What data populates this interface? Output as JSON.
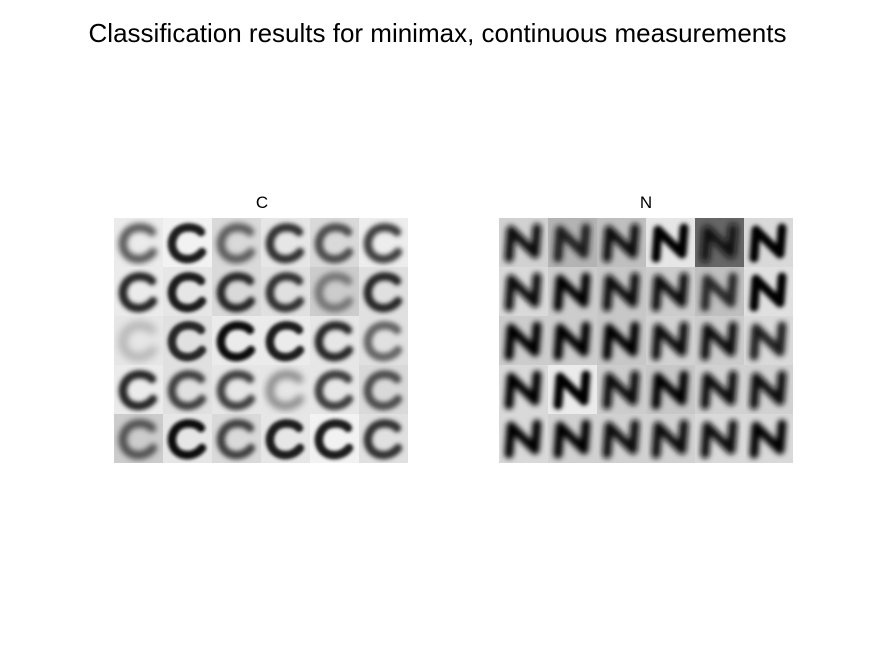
{
  "figure": {
    "title": "Classification results for minimax, continuous measurements"
  },
  "panels": [
    {
      "label": "C",
      "rows": 5,
      "cols": 6,
      "tile_glyph": "C",
      "tiles": [
        {
          "bg": 0.92,
          "ink": 0.35,
          "blur": 3.0
        },
        {
          "bg": 0.95,
          "ink": 0.1,
          "blur": 1.5
        },
        {
          "bg": 0.85,
          "ink": 0.35,
          "blur": 3.0
        },
        {
          "bg": 0.9,
          "ink": 0.2,
          "blur": 2.0
        },
        {
          "bg": 0.85,
          "ink": 0.3,
          "blur": 2.5
        },
        {
          "bg": 0.93,
          "ink": 0.25,
          "blur": 2.5
        },
        {
          "bg": 0.92,
          "ink": 0.15,
          "blur": 2.0
        },
        {
          "bg": 0.9,
          "ink": 0.1,
          "blur": 1.5
        },
        {
          "bg": 0.85,
          "ink": 0.15,
          "blur": 2.0
        },
        {
          "bg": 0.88,
          "ink": 0.2,
          "blur": 2.0
        },
        {
          "bg": 0.8,
          "ink": 0.45,
          "blur": 3.0
        },
        {
          "bg": 0.88,
          "ink": 0.15,
          "blur": 2.0
        },
        {
          "bg": 0.9,
          "ink": 0.7,
          "blur": 4.0
        },
        {
          "bg": 0.88,
          "ink": 0.15,
          "blur": 1.5
        },
        {
          "bg": 0.92,
          "ink": 0.05,
          "blur": 1.5
        },
        {
          "bg": 0.92,
          "ink": 0.1,
          "blur": 1.5
        },
        {
          "bg": 0.9,
          "ink": 0.15,
          "blur": 2.0
        },
        {
          "bg": 0.88,
          "ink": 0.4,
          "blur": 2.5
        },
        {
          "bg": 0.92,
          "ink": 0.15,
          "blur": 2.0
        },
        {
          "bg": 0.88,
          "ink": 0.25,
          "blur": 2.5
        },
        {
          "bg": 0.9,
          "ink": 0.25,
          "blur": 2.5
        },
        {
          "bg": 0.9,
          "ink": 0.55,
          "blur": 3.5
        },
        {
          "bg": 0.9,
          "ink": 0.25,
          "blur": 2.0
        },
        {
          "bg": 0.85,
          "ink": 0.3,
          "blur": 2.5
        },
        {
          "bg": 0.8,
          "ink": 0.3,
          "blur": 3.0
        },
        {
          "bg": 0.9,
          "ink": 0.05,
          "blur": 1.5
        },
        {
          "bg": 0.85,
          "ink": 0.25,
          "blur": 2.5
        },
        {
          "bg": 0.9,
          "ink": 0.1,
          "blur": 1.5
        },
        {
          "bg": 0.95,
          "ink": 0.1,
          "blur": 1.5
        },
        {
          "bg": 0.88,
          "ink": 0.2,
          "blur": 2.0
        }
      ]
    },
    {
      "label": "N",
      "rows": 5,
      "cols": 6,
      "tile_glyph": "N",
      "tiles": [
        {
          "bg": 0.82,
          "ink": 0.05,
          "blur": 3.0
        },
        {
          "bg": 0.7,
          "ink": 0.1,
          "blur": 3.0
        },
        {
          "bg": 0.75,
          "ink": 0.05,
          "blur": 3.0
        },
        {
          "bg": 0.9,
          "ink": 0.0,
          "blur": 2.0
        },
        {
          "bg": 0.4,
          "ink": 0.05,
          "blur": 3.5
        },
        {
          "bg": 0.85,
          "ink": 0.0,
          "blur": 2.0
        },
        {
          "bg": 0.85,
          "ink": 0.05,
          "blur": 3.0
        },
        {
          "bg": 0.8,
          "ink": 0.0,
          "blur": 3.0
        },
        {
          "bg": 0.78,
          "ink": 0.05,
          "blur": 3.0
        },
        {
          "bg": 0.8,
          "ink": 0.05,
          "blur": 3.0
        },
        {
          "bg": 0.75,
          "ink": 0.15,
          "blur": 3.0
        },
        {
          "bg": 0.88,
          "ink": 0.0,
          "blur": 2.0
        },
        {
          "bg": 0.8,
          "ink": 0.0,
          "blur": 3.0
        },
        {
          "bg": 0.8,
          "ink": 0.0,
          "blur": 3.0
        },
        {
          "bg": 0.78,
          "ink": 0.0,
          "blur": 3.0
        },
        {
          "bg": 0.82,
          "ink": 0.05,
          "blur": 3.0
        },
        {
          "bg": 0.8,
          "ink": 0.05,
          "blur": 3.0
        },
        {
          "bg": 0.85,
          "ink": 0.1,
          "blur": 3.0
        },
        {
          "bg": 0.85,
          "ink": 0.0,
          "blur": 3.0
        },
        {
          "bg": 0.92,
          "ink": 0.0,
          "blur": 2.0
        },
        {
          "bg": 0.8,
          "ink": 0.05,
          "blur": 3.0
        },
        {
          "bg": 0.78,
          "ink": 0.0,
          "blur": 3.0
        },
        {
          "bg": 0.82,
          "ink": 0.05,
          "blur": 3.0
        },
        {
          "bg": 0.82,
          "ink": 0.05,
          "blur": 3.0
        },
        {
          "bg": 0.85,
          "ink": 0.0,
          "blur": 3.0
        },
        {
          "bg": 0.82,
          "ink": 0.0,
          "blur": 3.0
        },
        {
          "bg": 0.82,
          "ink": 0.05,
          "blur": 3.0
        },
        {
          "bg": 0.82,
          "ink": 0.05,
          "blur": 3.0
        },
        {
          "bg": 0.85,
          "ink": 0.05,
          "blur": 3.0
        },
        {
          "bg": 0.85,
          "ink": 0.0,
          "blur": 3.0
        }
      ]
    }
  ]
}
